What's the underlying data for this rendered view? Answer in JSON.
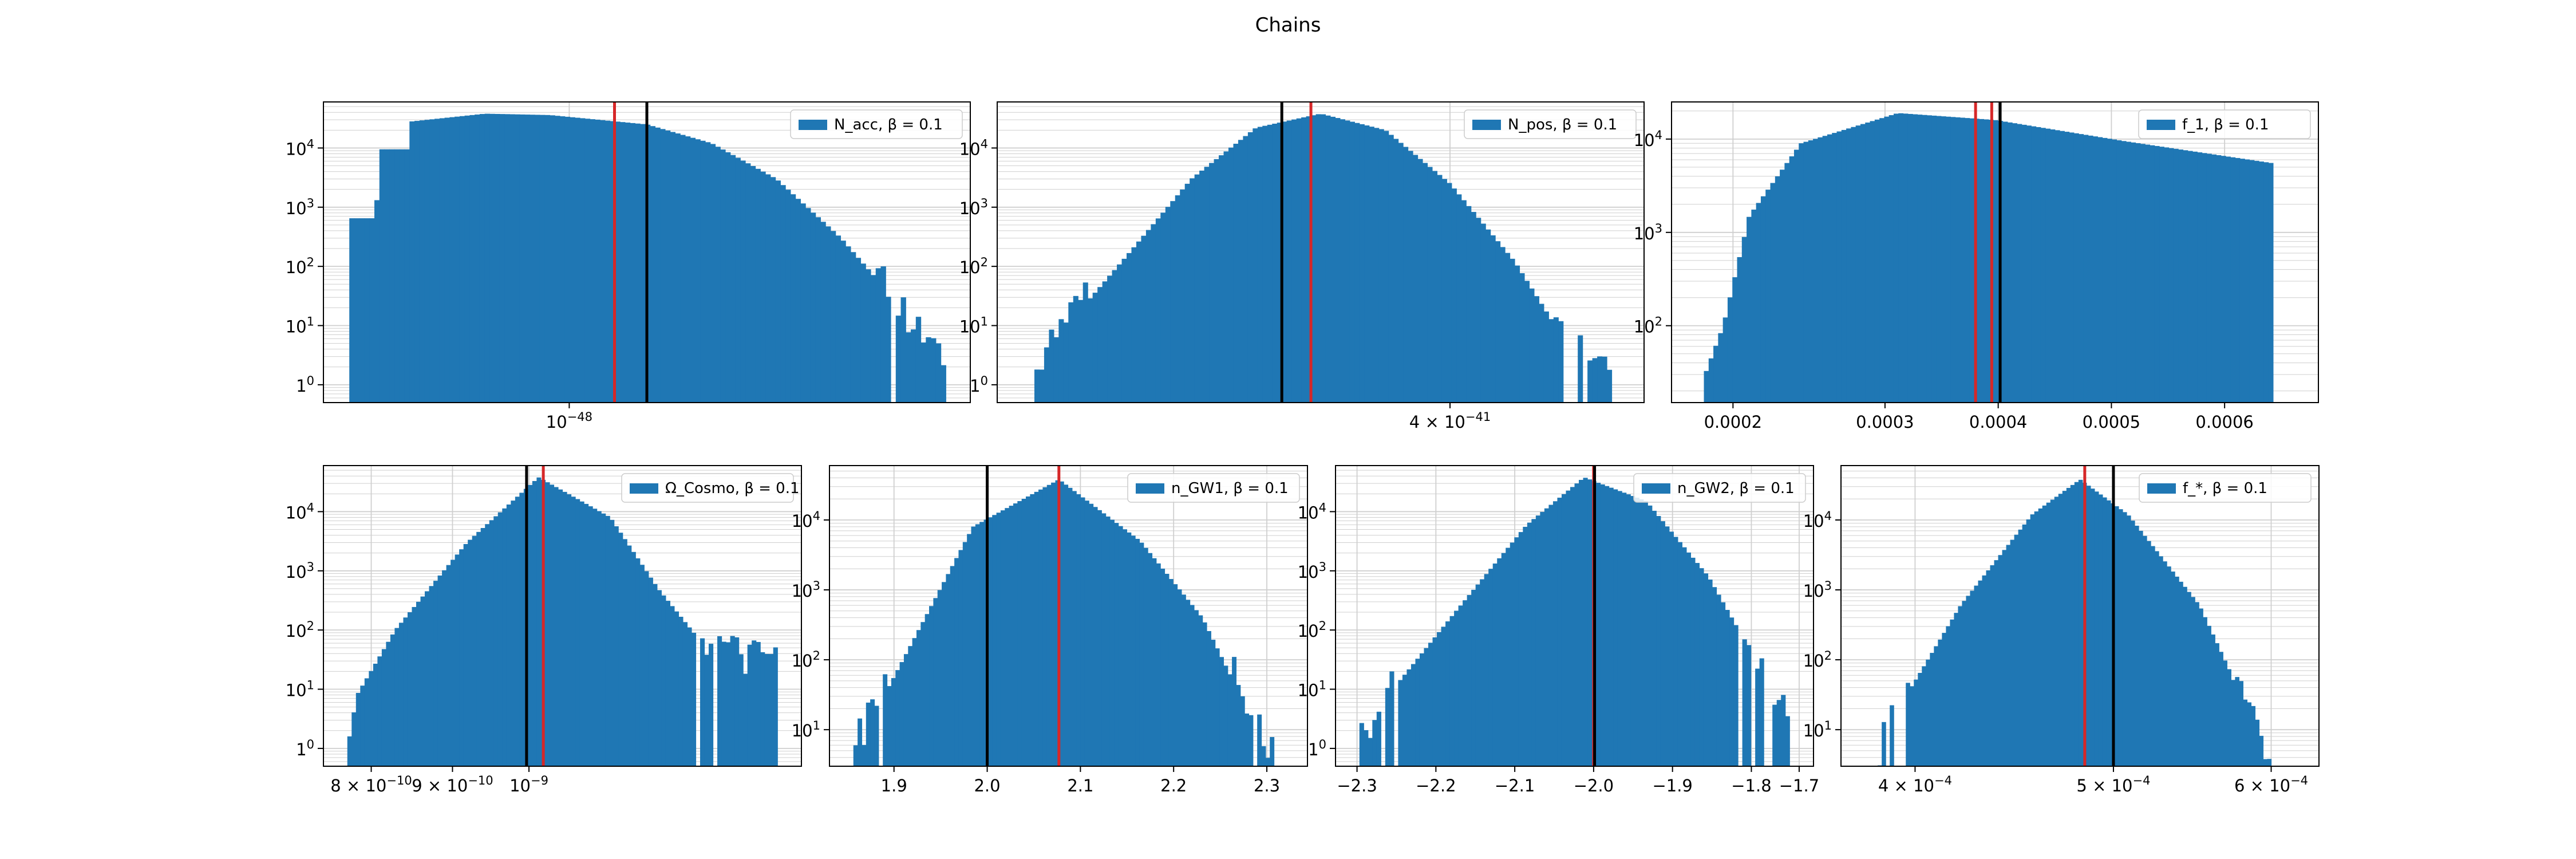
{
  "figure": {
    "title": "Chains"
  },
  "colors": {
    "bars": "#1f77b4",
    "red_line": "#d62728",
    "black_line": "#000000",
    "grid": "#b0b0b0"
  },
  "chart_data": [
    {
      "type": "bar",
      "panel": "top-left",
      "legend": "N_acc, β = 0.1",
      "legend_placement": "top-right",
      "yscale": "log",
      "grid": true,
      "y_ticks": [
        [
          "1",
          "0"
        ],
        [
          "10",
          "1"
        ],
        [
          "10",
          "2"
        ],
        [
          "10",
          "3"
        ],
        [
          "10",
          "4"
        ]
      ],
      "x_ticks": [
        {
          "label": "10",
          "exp": "−48",
          "pos": 0.38
        }
      ],
      "vlines": [
        {
          "color": "red",
          "pos": 0.45
        },
        {
          "color": "black",
          "pos": 0.5
        }
      ],
      "bins": 120,
      "x_range": [
        0.04,
        0.97
      ],
      "profile": [
        [
          0.04,
          650
        ],
        [
          0.08,
          650
        ],
        [
          0.09,
          9500
        ],
        [
          0.13,
          9500
        ],
        [
          0.135,
          28000
        ],
        [
          0.25,
          38000
        ],
        [
          0.35,
          36000
        ],
        [
          0.5,
          25000
        ],
        [
          0.6,
          12000
        ],
        [
          0.7,
          3000
        ],
        [
          0.8,
          300
        ],
        [
          0.87,
          40
        ],
        [
          0.93,
          5
        ],
        [
          0.97,
          1
        ]
      ],
      "noise_from": 0.85
    },
    {
      "type": "bar",
      "panel": "top-middle",
      "legend": "N_pos, β = 0.1",
      "legend_placement": "top-right",
      "yscale": "log",
      "grid": true,
      "y_ticks": [
        [
          "1",
          "0"
        ],
        [
          "10",
          "1"
        ],
        [
          "10",
          "2"
        ],
        [
          "10",
          "3"
        ],
        [
          "10",
          "4"
        ]
      ],
      "x_ticks": [
        {
          "label": "4 × 10",
          "exp": "−41",
          "pos": 0.7
        }
      ],
      "vlines": [
        {
          "color": "black",
          "pos": 0.44
        },
        {
          "color": "red",
          "pos": 0.485
        }
      ],
      "bins": 120,
      "x_range": [
        0.05,
        0.95
      ],
      "profile": [
        [
          0.05,
          1
        ],
        [
          0.1,
          8
        ],
        [
          0.2,
          150
        ],
        [
          0.3,
          3000
        ],
        [
          0.4,
          22000
        ],
        [
          0.5,
          38000
        ],
        [
          0.6,
          20000
        ],
        [
          0.7,
          2500
        ],
        [
          0.8,
          120
        ],
        [
          0.88,
          5
        ],
        [
          0.95,
          1
        ]
      ],
      "noise_from": 0.86,
      "noise_to": 0.14
    },
    {
      "type": "bar",
      "panel": "top-right",
      "legend": "f_1, β = 0.1",
      "legend_placement": "top-right",
      "yscale": "log",
      "grid": true,
      "y_ticks": [
        [
          "10",
          "2"
        ],
        [
          "10",
          "3"
        ],
        [
          "10",
          "4"
        ]
      ],
      "x_ticks": [
        {
          "label": "0.0002",
          "pos": 0.095
        },
        {
          "label": "0.0003",
          "pos": 0.33
        },
        {
          "label": "0.0004",
          "pos": 0.505
        },
        {
          "label": "0.0005",
          "pos": 0.68
        },
        {
          "label": "0.0006",
          "pos": 0.855
        }
      ],
      "vlines": [
        {
          "color": "red",
          "pos": 0.47
        },
        {
          "color": "red",
          "pos": 0.495
        },
        {
          "color": "black",
          "pos": 0.508
        }
      ],
      "bins": 120,
      "x_range": [
        0.05,
        0.93
      ],
      "profile": [
        [
          0.05,
          28
        ],
        [
          0.08,
          100
        ],
        [
          0.12,
          1500
        ],
        [
          0.2,
          9000
        ],
        [
          0.35,
          19000
        ],
        [
          0.5,
          16000
        ],
        [
          0.7,
          9500
        ],
        [
          0.93,
          5500
        ]
      ]
    },
    {
      "type": "bar",
      "panel": "bottom-1",
      "legend": "Ω_Cosmo, β = 0.1",
      "legend_placement": "top-right",
      "yscale": "log",
      "grid": true,
      "y_ticks": [
        [
          "1",
          "0"
        ],
        [
          "10",
          "1"
        ],
        [
          "10",
          "2"
        ],
        [
          "10",
          "3"
        ],
        [
          "10",
          "4"
        ]
      ],
      "x_ticks": [
        {
          "label": "8 × 10",
          "exp": "−10",
          "pos": 0.1
        },
        {
          "label": "9 × 10",
          "exp": "−10",
          "pos": 0.27
        },
        {
          "label": "10",
          "exp": "−9",
          "pos": 0.43
        }
      ],
      "vlines": [
        {
          "color": "black",
          "pos": 0.425
        },
        {
          "color": "red",
          "pos": 0.46
        }
      ],
      "bins": 100,
      "x_range": [
        0.05,
        0.95
      ],
      "profile": [
        [
          0.05,
          1
        ],
        [
          0.07,
          8
        ],
        [
          0.15,
          100
        ],
        [
          0.3,
          3000
        ],
        [
          0.45,
          38000
        ],
        [
          0.6,
          8000
        ],
        [
          0.7,
          500
        ],
        [
          0.8,
          50
        ],
        [
          0.88,
          30
        ],
        [
          0.95,
          25
        ]
      ],
      "noise_from": 0.78
    },
    {
      "type": "bar",
      "panel": "bottom-2",
      "legend": "n_GW1, β = 0.1",
      "legend_placement": "top-right",
      "yscale": "log",
      "grid": true,
      "y_ticks": [
        [
          "10",
          "1"
        ],
        [
          "10",
          "2"
        ],
        [
          "10",
          "3"
        ],
        [
          "10",
          "4"
        ]
      ],
      "x_ticks": [
        {
          "label": "1.9",
          "pos": 0.135
        },
        {
          "label": "2.0",
          "pos": 0.33
        },
        {
          "label": "2.1",
          "pos": 0.525
        },
        {
          "label": "2.2",
          "pos": 0.72
        },
        {
          "label": "2.3",
          "pos": 0.915
        }
      ],
      "vlines": [
        {
          "color": "black",
          "pos": 0.33
        },
        {
          "color": "red",
          "pos": 0.48
        }
      ],
      "bins": 100,
      "x_range": [
        0.05,
        0.93
      ],
      "profile": [
        [
          0.05,
          4
        ],
        [
          0.1,
          20
        ],
        [
          0.2,
          400
        ],
        [
          0.3,
          8000
        ],
        [
          0.48,
          38000
        ],
        [
          0.65,
          5000
        ],
        [
          0.78,
          400
        ],
        [
          0.86,
          30
        ],
        [
          0.93,
          3
        ]
      ],
      "noise_from": 0.84,
      "noise_to": 0.12
    },
    {
      "type": "bar",
      "panel": "bottom-3",
      "legend": "n_GW2, β = 0.1",
      "legend_placement": "top-right",
      "yscale": "log",
      "grid": true,
      "y_ticks": [
        [
          "1",
          "0"
        ],
        [
          "10",
          "1"
        ],
        [
          "10",
          "2"
        ],
        [
          "10",
          "3"
        ],
        [
          "10",
          "4"
        ]
      ],
      "x_ticks": [
        {
          "label": "−2.3",
          "pos": 0.045
        },
        {
          "label": "−2.2",
          "pos": 0.21
        },
        {
          "label": "−2.1",
          "pos": 0.375
        },
        {
          "label": "−2.0",
          "pos": 0.54
        },
        {
          "label": "−1.9",
          "pos": 0.705
        },
        {
          "label": "−1.8",
          "pos": 0.87
        },
        {
          "label": "−1.7",
          "pos": 0.97
        }
      ],
      "vlines": [
        {
          "color": "red",
          "pos": 0.54
        },
        {
          "color": "black",
          "pos": 0.542
        }
      ],
      "bins": 100,
      "x_range": [
        0.05,
        0.95
      ],
      "profile": [
        [
          0.05,
          1
        ],
        [
          0.12,
          10
        ],
        [
          0.25,
          200
        ],
        [
          0.4,
          6000
        ],
        [
          0.52,
          38000
        ],
        [
          0.65,
          15000
        ],
        [
          0.78,
          800
        ],
        [
          0.88,
          30
        ],
        [
          0.95,
          2
        ]
      ],
      "noise_from": 0.84,
      "noise_to": 0.13
    },
    {
      "type": "bar",
      "panel": "bottom-4",
      "legend": "f_*, β = 0.1",
      "legend_placement": "top-right",
      "yscale": "log",
      "grid": true,
      "y_ticks": [
        [
          "10",
          "1"
        ],
        [
          "10",
          "2"
        ],
        [
          "10",
          "3"
        ],
        [
          "10",
          "4"
        ]
      ],
      "x_ticks": [
        {
          "label": "4 × 10",
          "exp": "−4",
          "pos": 0.155
        },
        {
          "label": "5 × 10",
          "exp": "−4",
          "pos": 0.57
        },
        {
          "label": "6 × 10",
          "exp": "−4",
          "pos": 0.9
        }
      ],
      "vlines": [
        {
          "color": "red",
          "pos": 0.51
        },
        {
          "color": "black",
          "pos": 0.57
        }
      ],
      "bins": 100,
      "x_range": [
        0.06,
        0.9
      ],
      "profile": [
        [
          0.06,
          2
        ],
        [
          0.12,
          20
        ],
        [
          0.25,
          600
        ],
        [
          0.4,
          12000
        ],
        [
          0.5,
          38000
        ],
        [
          0.6,
          12000
        ],
        [
          0.75,
          600
        ],
        [
          0.85,
          20
        ],
        [
          0.9,
          2
        ]
      ],
      "noise_from": 0.82,
      "noise_to": 0.14
    }
  ]
}
